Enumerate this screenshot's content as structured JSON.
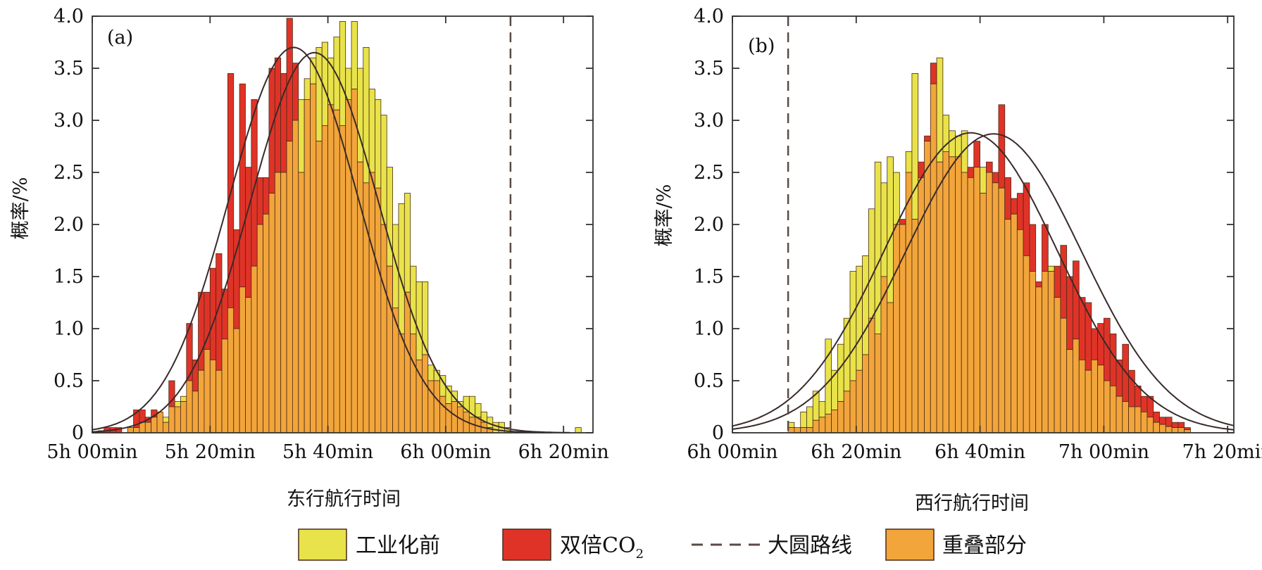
{
  "legend": {
    "preindustrial": "工业化前",
    "doubled_co2": "双倍CO",
    "doubled_co2_subscript": "2",
    "great_circle": "大圆路线",
    "overlap": "重叠部分"
  },
  "colors": {
    "preindustrial": "#e8e34a",
    "doubled_co2": "#e03328",
    "overlap": "#f2a53a",
    "bar_outline": "#4a2a18",
    "curve": "#3a2a2a",
    "great_circle_line": "#5a4a45",
    "axis": "#333333"
  },
  "chart_data": [
    {
      "type": "bar",
      "panel_label": "(a)",
      "xlabel": "东行航行时间",
      "ylabel": "概率/%",
      "x_unit": "minutes",
      "xlim": [
        300,
        385
      ],
      "ylim": [
        0,
        4.0
      ],
      "bin_width_min": 1,
      "grid": false,
      "great_circle_x": 371,
      "xticks": [
        300,
        320,
        340,
        360,
        380
      ],
      "xtick_labels": [
        "5h 00min",
        "5h 20min",
        "5h 40min",
        "6h 00min",
        "6h 20min"
      ],
      "yticks": [
        0,
        0.5,
        1.0,
        1.5,
        2.0,
        2.5,
        3.0,
        3.5,
        4.0
      ],
      "ytick_labels": [
        "0",
        "0.5",
        "1.0",
        "1.5",
        "2.0",
        "2.5",
        "3.0",
        "3.5",
        "4.0"
      ],
      "bin_start": 300,
      "series": [
        {
          "name": "工业化前",
          "values": [
            0,
            0,
            0,
            0,
            0,
            0,
            0.05,
            0.05,
            0.1,
            0.1,
            0.15,
            0.2,
            0.15,
            0.25,
            0.3,
            0.35,
            0.5,
            0.4,
            0.6,
            0.8,
            0.7,
            0.6,
            0.9,
            1.2,
            1.0,
            1.4,
            1.3,
            1.6,
            2.0,
            2.1,
            2.3,
            2.5,
            2.5,
            2.8,
            3.0,
            3.2,
            3.4,
            3.6,
            3.7,
            3.75,
            3.6,
            3.8,
            3.95,
            3.5,
            3.95,
            3.5,
            3.7,
            3.3,
            3.2,
            3.05,
            2.55,
            2.0,
            2.2,
            2.3,
            1.6,
            1.45,
            1.45,
            0.65,
            0.6,
            0.55,
            0.45,
            0.4,
            0.3,
            0.35,
            0.35,
            0.28,
            0.2,
            0.15,
            0.1,
            0.1,
            0.05,
            0,
            0,
            0,
            0,
            0,
            0,
            0,
            0,
            0,
            0,
            0,
            0.05,
            0,
            0
          ]
        },
        {
          "name": "双倍CO2",
          "values": [
            0,
            0.02,
            0.05,
            0.05,
            0.05,
            0,
            0.05,
            0.22,
            0.22,
            0.15,
            0.22,
            0.2,
            0.1,
            0.5,
            0.25,
            0.3,
            1.05,
            0.7,
            1.35,
            1.35,
            1.58,
            1.72,
            1.38,
            3.45,
            1.95,
            3.35,
            2.55,
            3.2,
            2.45,
            2.45,
            3.5,
            3.6,
            3.45,
            3.98,
            3.55,
            2.5,
            3.2,
            3.35,
            2.8,
            2.95,
            3.15,
            3.1,
            2.95,
            3.2,
            3.3,
            2.6,
            2.4,
            2.5,
            2.35,
            2.0,
            1.6,
            1.2,
            0.95,
            1.35,
            0.95,
            0.7,
            0.75,
            0.5,
            0.5,
            0.35,
            0.28,
            0.3,
            0.25,
            0.2,
            0.15,
            0.15,
            0.1,
            0.05,
            0,
            0,
            0,
            0,
            0,
            0,
            0,
            0,
            0,
            0,
            0,
            0,
            0,
            0,
            0,
            0,
            0
          ]
        }
      ],
      "fits": [
        {
          "name": "工业化前",
          "mean": 337.7,
          "sd": 10.9,
          "peak": 3.65
        },
        {
          "name": "双倍CO2",
          "mean": 334.2,
          "sd": 11.0,
          "peak": 3.7
        }
      ]
    },
    {
      "type": "bar",
      "panel_label": "(b)",
      "xlabel": "西行航行时间",
      "ylabel": "概率/%",
      "x_unit": "minutes",
      "xlim": [
        360,
        441
      ],
      "ylim": [
        0,
        4.0
      ],
      "bin_width_min": 1,
      "grid": false,
      "great_circle_x": 369,
      "xticks": [
        360,
        380,
        400,
        420,
        440
      ],
      "xtick_labels": [
        "6h 00min",
        "6h 20min",
        "6h 40min",
        "7h 00min",
        "7h 20min"
      ],
      "yticks": [
        0,
        0.5,
        1.0,
        1.5,
        2.0,
        2.5,
        3.0,
        3.5,
        4.0
      ],
      "ytick_labels": [
        "0",
        "0.5",
        "1.0",
        "1.5",
        "2.0",
        "2.5",
        "3.0",
        "3.5",
        "4.0"
      ],
      "bin_start": 369,
      "series": [
        {
          "name": "工业化前",
          "values": [
            0.1,
            0.05,
            0.2,
            0.25,
            0.4,
            0.3,
            0.9,
            0.6,
            0.85,
            1.1,
            1.55,
            1.6,
            1.7,
            2.15,
            2.6,
            2.4,
            2.65,
            2.5,
            2.0,
            2.7,
            3.45,
            2.45,
            2.8,
            3.35,
            3.6,
            3.05,
            2.9,
            2.85,
            2.9,
            2.45,
            2.55,
            2.55,
            2.5,
            2.4,
            2.35,
            2.05,
            2.1,
            1.95,
            1.7,
            1.55,
            1.4,
            1.55,
            1.6,
            1.3,
            1.1,
            0.8,
            0.9,
            0.7,
            0.6,
            0.7,
            0.65,
            0.5,
            0.45,
            0.35,
            0.3,
            0.25,
            0.25,
            0.2,
            0.15,
            0.1,
            0.08,
            0.06,
            0.05,
            0.05,
            0.03
          ]
        },
        {
          "name": "双倍CO2",
          "values": [
            0.05,
            0.05,
            0.05,
            0.05,
            0.12,
            0.15,
            0.18,
            0.22,
            0.3,
            0.4,
            0.5,
            0.6,
            0.75,
            1.1,
            0.95,
            1.5,
            1.25,
            2.0,
            2.05,
            2.5,
            2.05,
            2.6,
            2.85,
            3.55,
            2.6,
            2.7,
            2.65,
            2.65,
            2.5,
            2.55,
            2.8,
            2.3,
            2.6,
            2.5,
            3.15,
            2.45,
            2.25,
            2.3,
            2.4,
            2.0,
            1.45,
            2.0,
            1.55,
            1.6,
            1.8,
            1.5,
            1.65,
            1.3,
            1.25,
            1.0,
            1.05,
            1.1,
            0.95,
            0.7,
            0.85,
            0.6,
            0.45,
            0.35,
            0.35,
            0.2,
            0.15,
            0.15,
            0.1,
            0.1,
            0.05
          ]
        }
      ],
      "fits": [
        {
          "name": "工业化前",
          "mean": 398.5,
          "sd": 14.0,
          "peak": 2.88
        },
        {
          "name": "双倍CO2",
          "mean": 402.2,
          "sd": 14.2,
          "peak": 2.87
        }
      ]
    }
  ]
}
